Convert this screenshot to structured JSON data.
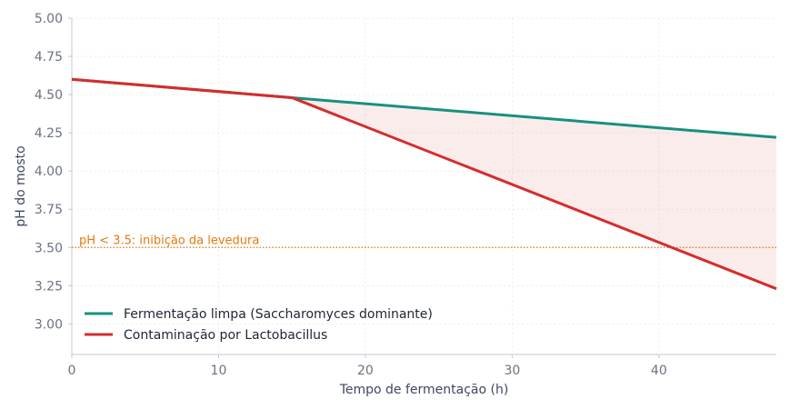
{
  "chart_data": {
    "type": "line",
    "title": "",
    "xlabel": "Tempo de fermentação (h)",
    "ylabel": "pH do mosto",
    "xlim": [
      0,
      48
    ],
    "ylim": [
      2.8,
      5.0
    ],
    "x_ticks": [
      "0",
      "10",
      "20",
      "30",
      "40"
    ],
    "y_ticks": [
      "3.00",
      "3.25",
      "3.50",
      "3.75",
      "4.00",
      "4.25",
      "4.50",
      "4.75",
      "5.00"
    ],
    "grid": true,
    "legend_position": "bottom-left",
    "series": [
      {
        "name": "Fermentação limpa (Saccharomyces dominante)",
        "color": "#16917f",
        "points": [
          [
            0,
            4.6
          ],
          [
            15,
            4.48
          ],
          [
            48,
            4.22
          ]
        ]
      },
      {
        "name": "Contaminação por Lactobacillus",
        "color": "#d62c2c",
        "points": [
          [
            0,
            4.6
          ],
          [
            15,
            4.48
          ],
          [
            48,
            3.23
          ]
        ]
      }
    ],
    "fill_between": {
      "color": "#d62c2c",
      "opacity": 0.09,
      "from_x": 15,
      "to_x": 48
    },
    "threshold": {
      "y": 3.5,
      "label": "pH < 3.5: inibição da levedura",
      "color": "#e07b10",
      "style": "dotted"
    }
  }
}
